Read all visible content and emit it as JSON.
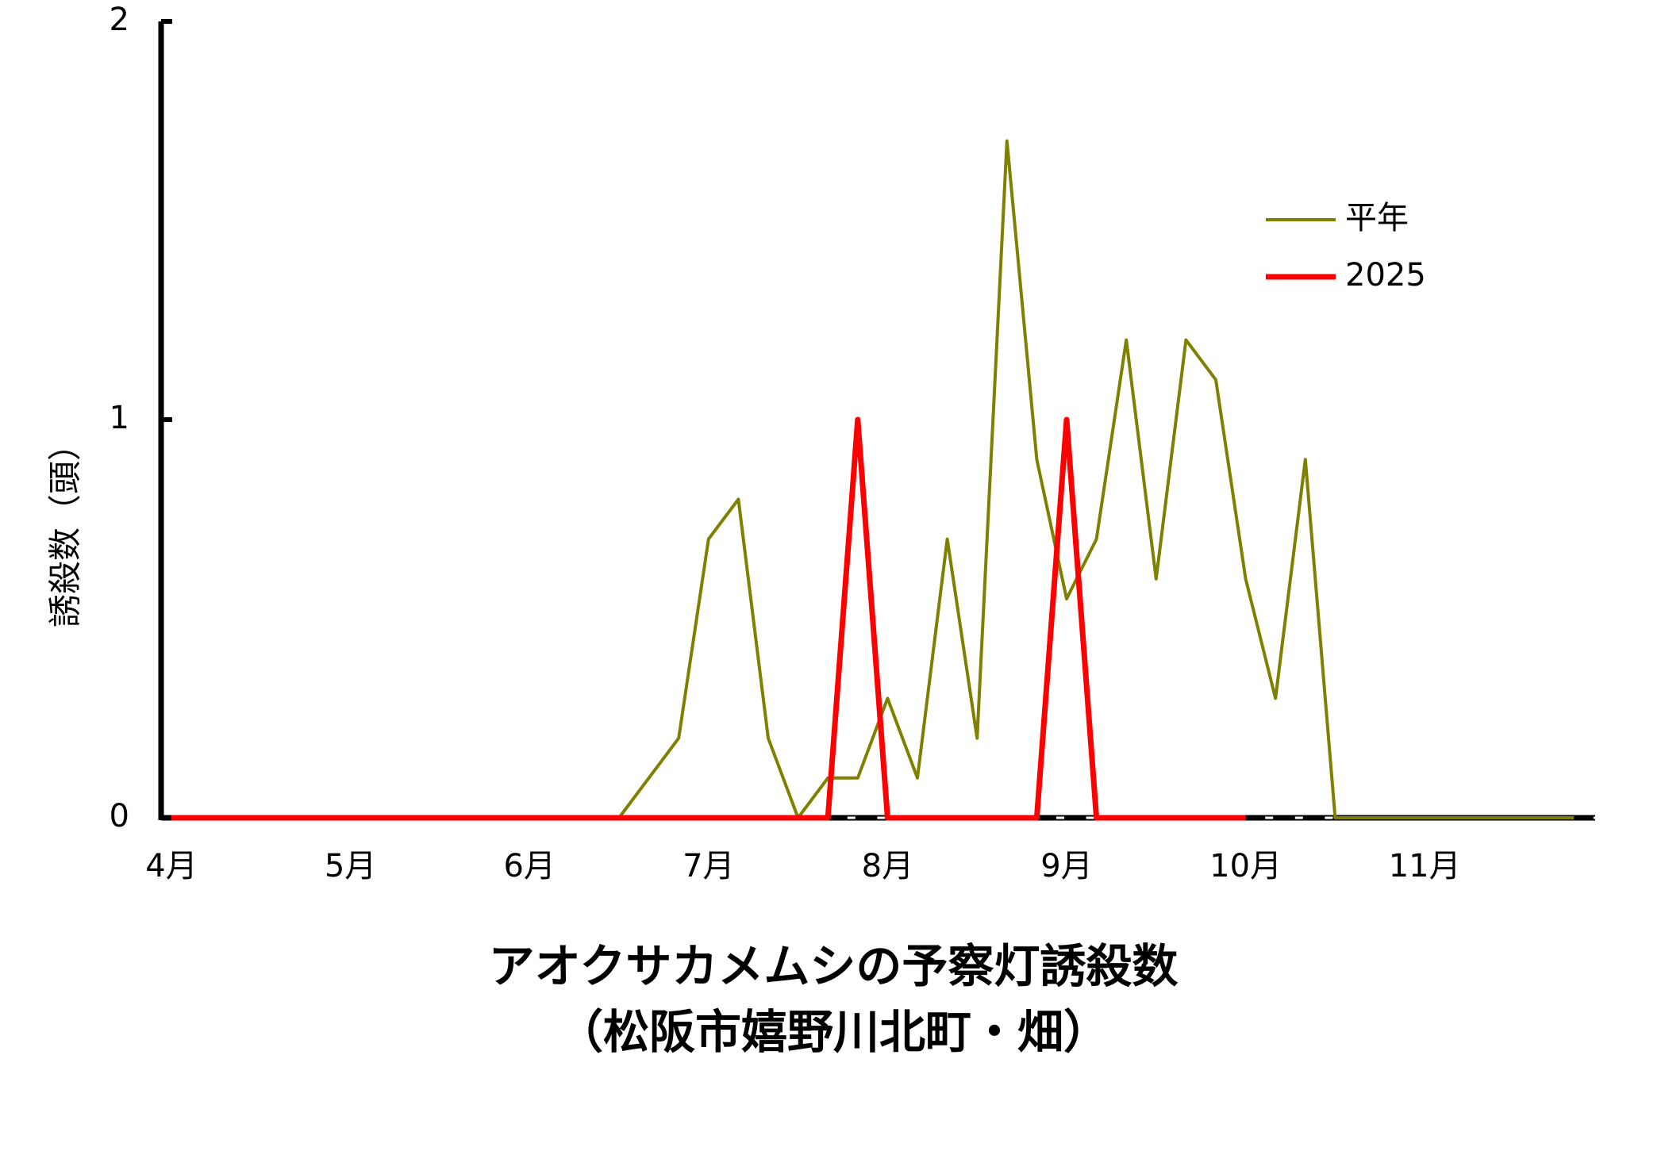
{
  "chart_data": {
    "type": "line",
    "title": "アオクサカメムシの予察灯誘殺数",
    "subtitle": "（松阪市嬉野川北町・畑）",
    "y_label": "誘殺数（頭）",
    "categories": [
      "4月",
      null,
      null,
      null,
      null,
      null,
      "5月",
      null,
      null,
      null,
      null,
      null,
      "6月",
      null,
      null,
      null,
      null,
      null,
      "7月",
      null,
      null,
      null,
      null,
      null,
      "8月",
      null,
      null,
      null,
      null,
      null,
      "9月",
      null,
      null,
      null,
      null,
      null,
      "10月",
      null,
      null,
      null,
      null,
      null,
      "11月",
      null,
      null,
      null,
      null,
      null
    ],
    "series": [
      {
        "name": "平年",
        "color": "#808000",
        "values": [
          0,
          0,
          0,
          0,
          0,
          0,
          0,
          0,
          0,
          0,
          0,
          0,
          0,
          0,
          0,
          0,
          0.1,
          0.2,
          0.7,
          0.8,
          0.2,
          0,
          0.1,
          0.1,
          0.3,
          0.1,
          0.7,
          0.2,
          1.7,
          0.9,
          0.55,
          0.7,
          1.2,
          0.6,
          1.2,
          1.1,
          0.6,
          0.3,
          0.9,
          0,
          0,
          0,
          0,
          0,
          0,
          0,
          0,
          0
        ]
      },
      {
        "name": "2025",
        "color": "#ff0000",
        "values": [
          0,
          0,
          0,
          0,
          0,
          0,
          0,
          0,
          0,
          0,
          0,
          0,
          0,
          0,
          0,
          0,
          0,
          0,
          0,
          0,
          0,
          0,
          0,
          1,
          0,
          0,
          0,
          0,
          0,
          0,
          1,
          0,
          0,
          0,
          0,
          0,
          0,
          null,
          null,
          null,
          null,
          null,
          null,
          null,
          null,
          null,
          null,
          null
        ]
      }
    ],
    "ylim": [
      0,
      2
    ],
    "yticks": [
      0,
      1,
      2
    ],
    "legend": "upper right"
  }
}
